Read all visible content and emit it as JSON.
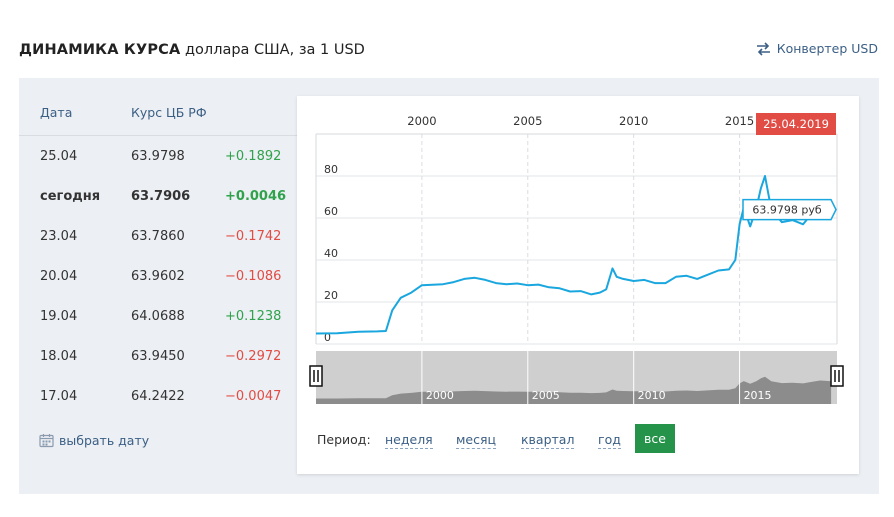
{
  "header": {
    "title_bold": "ДИНАМИКА КУРСА",
    "title_rest": " доллара США, за 1 USD",
    "converter_label": "Конвертер USD"
  },
  "table": {
    "col_date": "Дата",
    "col_rate": "Курс ЦБ РФ",
    "rows": [
      {
        "date": "25.04",
        "rate": "63.9798",
        "change": "+0.1892",
        "dir": "up",
        "bold": false
      },
      {
        "date": "сегодня",
        "rate": "63.7906",
        "change": "+0.0046",
        "dir": "up",
        "bold": true
      },
      {
        "date": "23.04",
        "rate": "63.7860",
        "change": "−0.1742",
        "dir": "down",
        "bold": false
      },
      {
        "date": "20.04",
        "rate": "63.9602",
        "change": "−0.1086",
        "dir": "down",
        "bold": false
      },
      {
        "date": "19.04",
        "rate": "64.0688",
        "change": "+0.1238",
        "dir": "up",
        "bold": false
      },
      {
        "date": "18.04",
        "rate": "63.9450",
        "change": "−0.2972",
        "dir": "down",
        "bold": false
      },
      {
        "date": "17.04",
        "rate": "64.2422",
        "change": "−0.0047",
        "dir": "down",
        "bold": false
      }
    ],
    "pick_date_label": "выбрать дату"
  },
  "period": {
    "label": "Период:",
    "options": [
      "неделя",
      "месяц",
      "квартал",
      "год"
    ],
    "active": "все"
  },
  "colors": {
    "line": "#1aa6de",
    "positive": "#2fa24b",
    "negative": "#e14c45",
    "badge": "#e14c45",
    "active_button": "#25934a"
  },
  "chart_data": {
    "type": "line",
    "series": [
      {
        "x": [
          1995.0,
          1996.0,
          1997.0,
          1997.9,
          1998.3,
          1998.6,
          1999.0,
          1999.5,
          2000.0,
          2000.5,
          2001.0,
          2001.5,
          2002.0,
          2002.5,
          2003.0,
          2003.5,
          2004.0,
          2004.5,
          2005.0,
          2005.5,
          2006.0,
          2006.5,
          2007.0,
          2007.5,
          2008.0,
          2008.4,
          2008.7,
          2009.0,
          2009.2,
          2009.5,
          2010.0,
          2010.5,
          2011.0,
          2011.5,
          2012.0,
          2012.5,
          2013.0,
          2013.5,
          2014.0,
          2014.5,
          2014.8,
          2015.0,
          2015.2,
          2015.5,
          2015.8,
          2016.0,
          2016.2,
          2016.5,
          2017.0,
          2017.5,
          2018.0,
          2018.4,
          2018.8,
          2019.0,
          2019.32
        ],
        "y": [
          5,
          5.1,
          5.8,
          6.0,
          6.2,
          16.0,
          22.0,
          24.5,
          28.0,
          28.2,
          28.5,
          29.5,
          31.0,
          31.5,
          30.5,
          29.0,
          28.5,
          28.8,
          28.0,
          28.3,
          27.0,
          26.5,
          25.0,
          25.2,
          23.6,
          24.5,
          26.0,
          36.0,
          32.0,
          31.0,
          30.0,
          30.5,
          29.0,
          29.0,
          32.0,
          32.5,
          31.0,
          33.0,
          35.0,
          35.5,
          40.0,
          57.0,
          65.0,
          56.0,
          65.0,
          74.0,
          80.0,
          64.0,
          58.0,
          59.0,
          57.0,
          62.0,
          67.0,
          66.0,
          63.9798
        ]
      }
    ],
    "x_ticks": [
      "2000",
      "2005",
      "2010",
      "2015"
    ],
    "y_ticks": [
      "0",
      "20",
      "40",
      "60",
      "80"
    ],
    "xlim": [
      1995,
      2019.6
    ],
    "ylim": [
      0,
      100
    ],
    "navigator_ticks": [
      "2000",
      "2005",
      "2010",
      "2015"
    ],
    "tooltip": "63.9798 руб",
    "date_badge": "25.04.2019",
    "grid": true,
    "legend": "none"
  }
}
